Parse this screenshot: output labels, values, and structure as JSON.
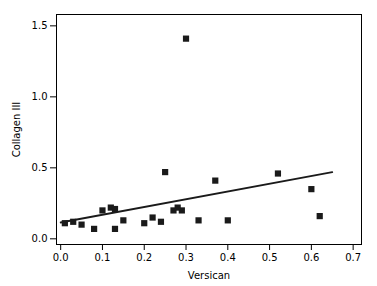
{
  "chart_data": {
    "type": "scatter",
    "xlabel": "Versican",
    "ylabel": "Collagen III",
    "xlim": [
      -0.01,
      0.72
    ],
    "ylim": [
      -0.04,
      1.58
    ],
    "xticks": [
      {
        "value": 0.0,
        "label": "0.0"
      },
      0.1,
      0.2,
      0.3,
      0.4,
      0.5,
      0.6,
      0.7
    ],
    "yticks": [
      {
        "value": 0.0,
        "label": "0.0"
      },
      0.5,
      {
        "value": 1.0,
        "label": "1.0"
      },
      1.5
    ],
    "grid": false,
    "series": [
      {
        "type": "scatter",
        "marker": "square",
        "color": "#1a1a1a",
        "x": [
          0.01,
          0.03,
          0.05,
          0.08,
          0.1,
          0.12,
          0.13,
          0.13,
          0.15,
          0.2,
          0.22,
          0.24,
          0.25,
          0.27,
          0.28,
          0.29,
          0.3,
          0.33,
          0.37,
          0.4,
          0.52,
          0.6,
          0.62
        ],
        "values": [
          0.11,
          0.12,
          0.1,
          0.07,
          0.2,
          0.22,
          0.21,
          0.07,
          0.13,
          0.11,
          0.15,
          0.12,
          0.47,
          0.2,
          0.22,
          0.2,
          1.41,
          0.13,
          0.41,
          0.13,
          0.46,
          0.35,
          0.16
        ]
      },
      {
        "type": "line",
        "color": "#1a1a1a",
        "x": [
          0.0,
          0.65
        ],
        "values": [
          0.115,
          0.47
        ]
      }
    ]
  }
}
